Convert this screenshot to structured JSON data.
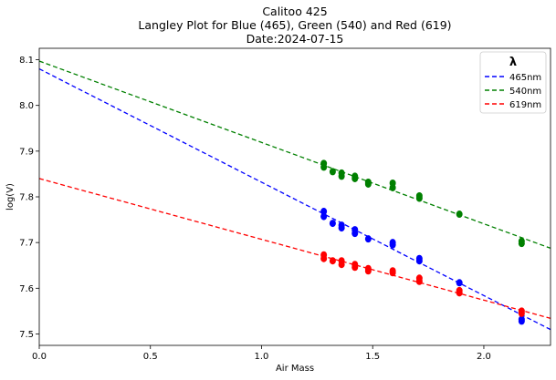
{
  "chart_data": {
    "type": "scatter",
    "title_lines": [
      "Calitoo 425",
      "Langley Plot for Blue (465), Green (540) and Red (619)",
      "Date:2024-07-15"
    ],
    "xlabel": "Air Mass",
    "ylabel": "log(V)",
    "xlim": [
      0.0,
      2.3
    ],
    "ylim": [
      7.475,
      8.125
    ],
    "xticks": [
      "0.0",
      "0.5",
      "1.0",
      "1.5",
      "2.0"
    ],
    "yticks": [
      "7.5",
      "7.6",
      "7.7",
      "7.8",
      "7.9",
      "8.0",
      "8.1"
    ],
    "grid": false,
    "legend": {
      "title": "λ",
      "placement": "top-right",
      "entries": [
        "465nm",
        "540nm",
        "619nm"
      ]
    },
    "series": [
      {
        "name": "465nm",
        "color": "#0000ff",
        "fit": {
          "intercept": 8.08,
          "slope": -0.248
        },
        "points": [
          [
            1.28,
            7.768
          ],
          [
            1.28,
            7.757
          ],
          [
            1.32,
            7.742
          ],
          [
            1.36,
            7.738
          ],
          [
            1.36,
            7.732
          ],
          [
            1.42,
            7.728
          ],
          [
            1.42,
            7.72
          ],
          [
            1.48,
            7.708
          ],
          [
            1.59,
            7.7
          ],
          [
            1.59,
            7.695
          ],
          [
            1.71,
            7.665
          ],
          [
            1.71,
            7.66
          ],
          [
            1.89,
            7.612
          ],
          [
            2.17,
            7.532
          ],
          [
            2.17,
            7.528
          ]
        ]
      },
      {
        "name": "540nm",
        "color": "#008000",
        "fit": {
          "intercept": 8.097,
          "slope": -0.178
        },
        "points": [
          [
            1.28,
            7.873
          ],
          [
            1.28,
            7.865
          ],
          [
            1.32,
            7.855
          ],
          [
            1.36,
            7.852
          ],
          [
            1.36,
            7.845
          ],
          [
            1.42,
            7.845
          ],
          [
            1.42,
            7.84
          ],
          [
            1.48,
            7.832
          ],
          [
            1.48,
            7.828
          ],
          [
            1.59,
            7.83
          ],
          [
            1.59,
            7.82
          ],
          [
            1.71,
            7.802
          ],
          [
            1.71,
            7.797
          ],
          [
            1.89,
            7.762
          ],
          [
            2.17,
            7.703
          ],
          [
            2.17,
            7.698
          ]
        ]
      },
      {
        "name": "619nm",
        "color": "#ff0000",
        "fit": {
          "intercept": 7.84,
          "slope": -0.133
        },
        "points": [
          [
            1.28,
            7.673
          ],
          [
            1.28,
            7.665
          ],
          [
            1.32,
            7.66
          ],
          [
            1.36,
            7.66
          ],
          [
            1.36,
            7.652
          ],
          [
            1.42,
            7.652
          ],
          [
            1.42,
            7.646
          ],
          [
            1.48,
            7.643
          ],
          [
            1.48,
            7.638
          ],
          [
            1.59,
            7.638
          ],
          [
            1.59,
            7.634
          ],
          [
            1.71,
            7.622
          ],
          [
            1.71,
            7.615
          ],
          [
            1.89,
            7.595
          ],
          [
            1.89,
            7.59
          ],
          [
            2.17,
            7.55
          ],
          [
            2.17,
            7.545
          ]
        ]
      }
    ]
  }
}
